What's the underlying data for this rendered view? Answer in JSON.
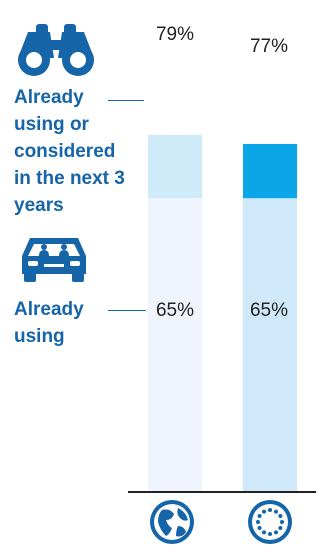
{
  "chart_data": {
    "type": "bar",
    "categories": [
      "Global",
      "Europe"
    ],
    "series": [
      {
        "name": "Already using",
        "values": [
          65,
          65
        ]
      },
      {
        "name": "Already using or considered in the next 3 years",
        "values": [
          79,
          77
        ]
      }
    ],
    "ylim": [
      0,
      100
    ]
  },
  "labels": {
    "considered": "Already using or considered in the next 3 years",
    "using": "Already using"
  },
  "data_labels": {
    "global_top": "79%",
    "europe_top": "77%",
    "global_using": "65%",
    "europe_using": "65%"
  },
  "icons": {
    "considered": "binoculars-icon",
    "using": "car-icon",
    "global": "globe-icon",
    "europe": "eu-flag-icon"
  },
  "colors": {
    "accent": "#1565a8",
    "using_global": "#f0f4fc",
    "using_europe": "#cfe9fa",
    "considered_global": "#cfeaf8",
    "considered_europe": "#0aa6e8"
  }
}
